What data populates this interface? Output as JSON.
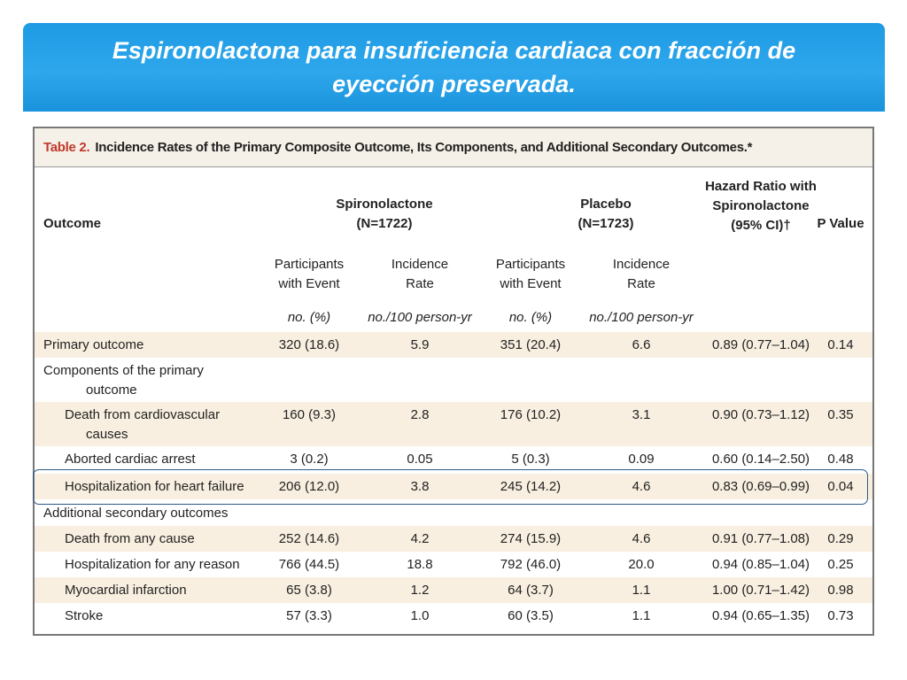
{
  "slide": {
    "title": "Espironolactona para insuficiencia cardiaca con fracción de eyección preservada."
  },
  "table": {
    "caption_number": "Table 2.",
    "caption_text": "Incidence Rates of the Primary Composite Outcome, Its Components, and Additional Secondary Outcomes.*",
    "headers": {
      "outcome": "Outcome",
      "spiro_group": "Spironolactone",
      "spiro_n": "(N=1722)",
      "placebo_group": "Placebo",
      "placebo_n": "(N=1723)",
      "hr_line1": "Hazard Ratio with",
      "hr_line2": "Spironolactone",
      "hr_line3": "(95% CI)†",
      "pvalue": "P Value",
      "participants_line1": "Participants",
      "participants_line2": "with Event",
      "incidence_line1": "Incidence",
      "incidence_line2": "Rate",
      "unit_no_pct": "no. (%)",
      "unit_rate": "no./100 person-yr"
    },
    "rows": [
      {
        "label": "Primary outcome",
        "s_events": "320 (18.6)",
        "s_rate": "5.9",
        "p_events": "351 (20.4)",
        "p_rate": "6.6",
        "hr": "0.89 (0.77–1.04)",
        "p": "0.14"
      },
      {
        "label": "Components of the primary outcome",
        "label_line1": "Components of the primary",
        "label_line2": "outcome"
      },
      {
        "label_line1": "Death from cardiovascular",
        "label_line2": "causes",
        "s_events": "160 (9.3)",
        "s_rate": "2.8",
        "p_events": "176 (10.2)",
        "p_rate": "3.1",
        "hr": "0.90 (0.73–1.12)",
        "p": "0.35"
      },
      {
        "label": "Aborted cardiac arrest",
        "s_events": "3 (0.2)",
        "s_rate": "0.05",
        "p_events": "5 (0.3)",
        "p_rate": "0.09",
        "hr": "0.60 (0.14–2.50)",
        "p": "0.48"
      },
      {
        "label": "Hospitalization for heart failure",
        "s_events": "206 (12.0)",
        "s_rate": "3.8",
        "p_events": "245 (14.2)",
        "p_rate": "4.6",
        "hr": "0.83 (0.69–0.99)",
        "p": "0.04"
      },
      {
        "label": "Additional secondary outcomes"
      },
      {
        "label": "Death from any cause",
        "s_events": "252 (14.6)",
        "s_rate": "4.2",
        "p_events": "274 (15.9)",
        "p_rate": "4.6",
        "hr": "0.91 (0.77–1.08)",
        "p": "0.29"
      },
      {
        "label": "Hospitalization for any reason",
        "s_events": "766 (44.5)",
        "s_rate": "18.8",
        "p_events": "792 (46.0)",
        "p_rate": "20.0",
        "hr": "0.94 (0.85–1.04)",
        "p": "0.25"
      },
      {
        "label": "Myocardial infarction",
        "s_events": "65 (3.8)",
        "s_rate": "1.2",
        "p_events": "64 (3.7)",
        "p_rate": "1.1",
        "hr": "1.00 (0.71–1.42)",
        "p": "0.98"
      },
      {
        "label": "Stroke",
        "s_events": "57 (3.3)",
        "s_rate": "1.0",
        "p_events": "60 (3.5)",
        "p_rate": "1.1",
        "hr": "0.94 (0.65–1.35)",
        "p": "0.73"
      }
    ]
  },
  "colors": {
    "banner": "#2ea7ec",
    "caption_number": "#c0392b",
    "row_shade": "#f8efe0",
    "highlight_border": "#2d5a8a"
  }
}
